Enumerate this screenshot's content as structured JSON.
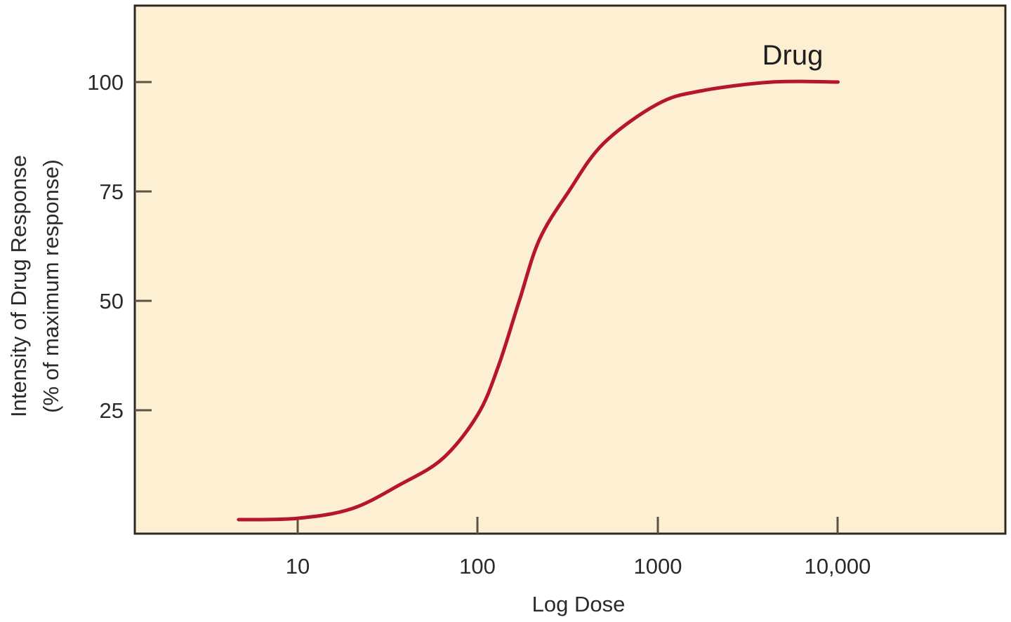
{
  "chart_data": {
    "type": "line",
    "title": "",
    "xlabel": "Log Dose",
    "ylabel": "Intensity of Drug Response",
    "ylabel_sub": "(% of maximum response)",
    "x_scale": "log",
    "x_ticks": [
      10,
      100,
      1000,
      10000
    ],
    "x_tick_labels": [
      "10",
      "100",
      "1000",
      "10,000"
    ],
    "y_ticks": [
      25,
      50,
      75,
      100
    ],
    "y_tick_labels": [
      "25",
      "50",
      "75",
      "100"
    ],
    "xlim": [
      1.5,
      60000
    ],
    "ylim": [
      -3,
      117
    ],
    "grid": false,
    "legend": "none",
    "annotations": [
      {
        "text": "Drug",
        "x": 6000,
        "y": 106
      }
    ],
    "series": [
      {
        "name": "Drug",
        "color": "#b5162b",
        "x": [
          4.7,
          10,
          20,
          37,
          64,
          100,
          130,
          170,
          220,
          320,
          500,
          1000,
          1750,
          4300,
          10000
        ],
        "y": [
          0,
          0.3,
          2.5,
          8,
          14,
          24,
          35,
          50,
          64,
          75,
          86,
          95,
          98,
          100,
          100
        ]
      }
    ],
    "background_color": "#fdefd1",
    "frame_color": "#2b2b25"
  }
}
